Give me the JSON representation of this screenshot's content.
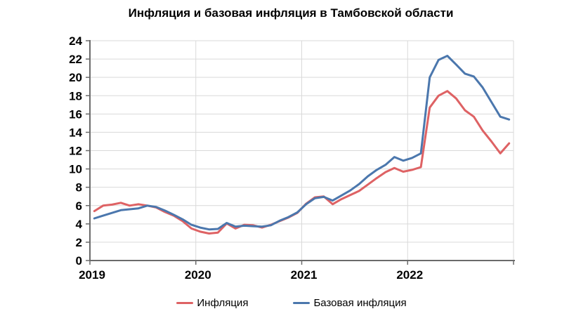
{
  "title": "Инфляция и базовая инфляция в Тамбовской области",
  "colors": {
    "grid": "#d9d9d9",
    "axis": "#6b6b6b",
    "inflation_red": "#de6264",
    "core_inflation_blue": "#4b77ad"
  },
  "legend": {
    "items": [
      {
        "label": "Инфляция"
      },
      {
        "label": "Базовая инфляция"
      }
    ]
  },
  "chart_data": {
    "type": "line",
    "title": "Инфляция и базовая инфляция в Тамбовской области",
    "xlabel": "",
    "ylabel": "",
    "ylim": [
      0,
      24
    ],
    "y_ticks": [
      0,
      2,
      4,
      6,
      8,
      10,
      12,
      14,
      16,
      18,
      20,
      22,
      24
    ],
    "x_tick_labels": [
      "2019",
      "2020",
      "2021",
      "2022"
    ],
    "x_period": {
      "start": "2019-01",
      "end": "2022-12",
      "frequency": "monthly"
    },
    "grid": "on",
    "legend_position": "bottom",
    "series": [
      {
        "name": "Инфляция",
        "color": "#de6264",
        "values": [
          5.4,
          6.0,
          6.1,
          6.3,
          6.0,
          6.15,
          6.0,
          5.8,
          5.3,
          4.9,
          4.3,
          3.5,
          3.15,
          2.95,
          3.05,
          4.05,
          3.5,
          3.9,
          3.85,
          3.6,
          3.9,
          4.3,
          4.7,
          5.2,
          6.2,
          6.9,
          7.0,
          6.15,
          6.7,
          7.15,
          7.6,
          8.3,
          9.0,
          9.65,
          10.1,
          9.7,
          9.9,
          10.2,
          16.7,
          18.0,
          18.5,
          17.7,
          16.4,
          15.7,
          14.2,
          13.0,
          11.7,
          12.8
        ]
      },
      {
        "name": "Базовая инфляция",
        "color": "#4b77ad",
        "values": [
          4.6,
          4.9,
          5.2,
          5.5,
          5.6,
          5.7,
          6.0,
          5.85,
          5.45,
          5.0,
          4.5,
          3.9,
          3.6,
          3.4,
          3.45,
          4.1,
          3.7,
          3.8,
          3.75,
          3.7,
          3.85,
          4.35,
          4.75,
          5.25,
          6.15,
          6.8,
          6.95,
          6.55,
          7.1,
          7.65,
          8.35,
          9.2,
          9.9,
          10.45,
          11.3,
          10.9,
          11.2,
          11.7,
          20.0,
          21.9,
          22.35,
          21.4,
          20.4,
          20.1,
          18.9,
          17.3,
          15.7,
          15.4
        ]
      }
    ]
  }
}
